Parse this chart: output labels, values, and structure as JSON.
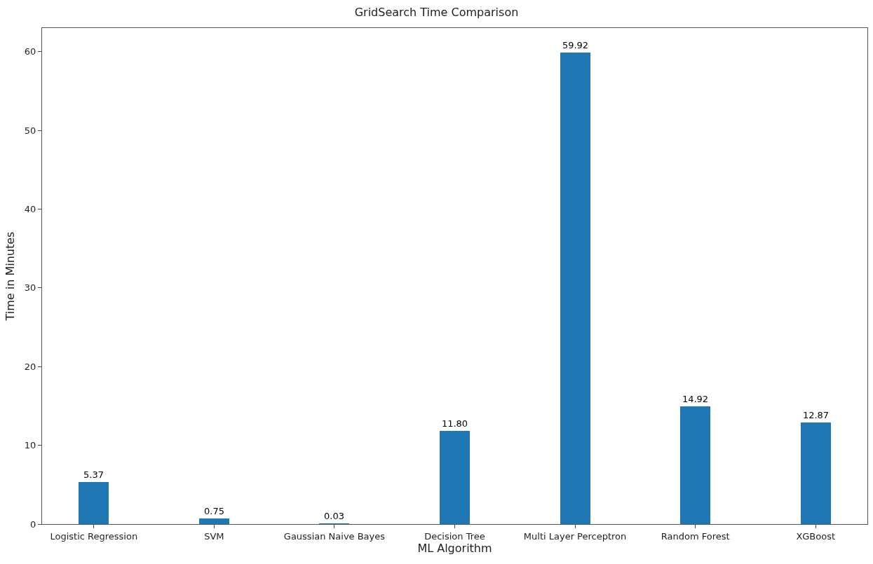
{
  "chart_data": {
    "type": "bar",
    "title": "GridSearch Time Comparison",
    "xlabel": "ML Algorithm",
    "ylabel": "Time in Minutes",
    "categories": [
      "Logistic Regression",
      "SVM",
      "Gaussian Naive Bayes",
      "Decision Tree",
      "Multi Layer Perceptron",
      "Random Forest",
      "XGBoost"
    ],
    "values": [
      5.37,
      0.75,
      0.03,
      11.8,
      59.92,
      14.92,
      12.87
    ],
    "value_labels": [
      "5.37",
      "0.75",
      "0.03",
      "11.80",
      "59.92",
      "14.92",
      "12.87"
    ],
    "color": "#1f77b4",
    "ylim": [
      0,
      63
    ],
    "yticks": [
      0,
      10,
      20,
      30,
      40,
      50,
      60
    ],
    "grid": false
  }
}
